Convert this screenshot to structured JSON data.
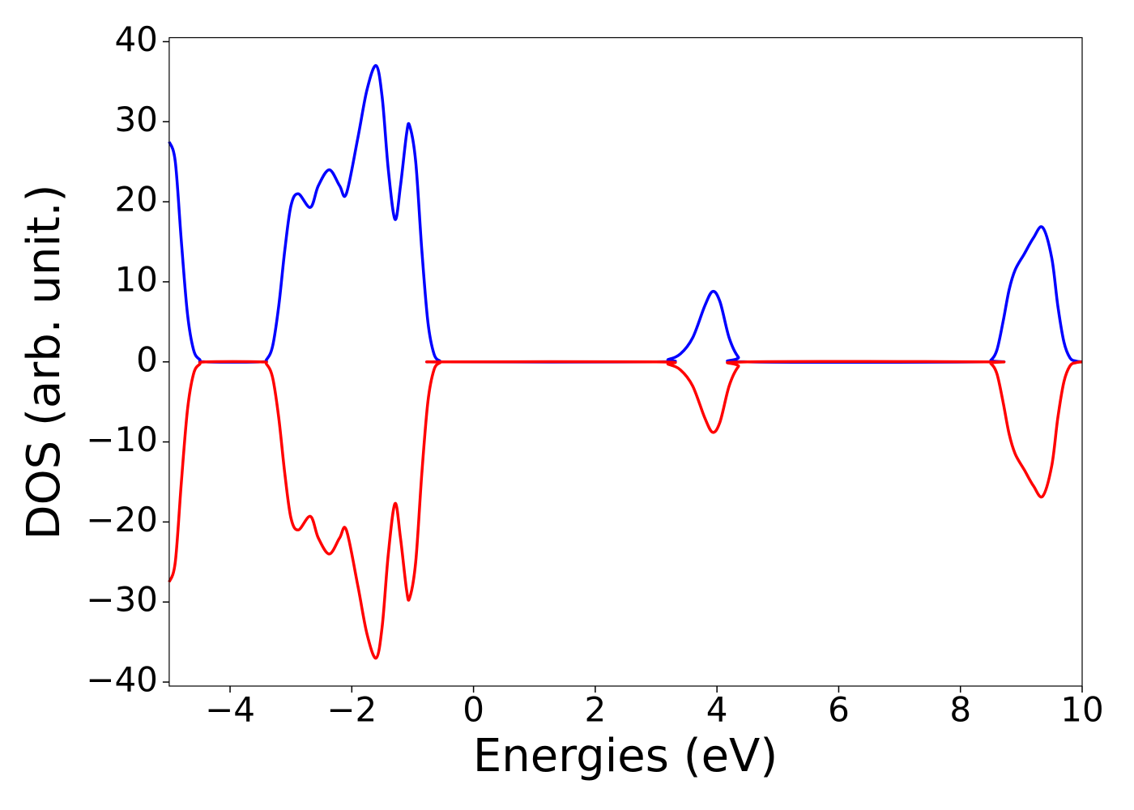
{
  "chart_data": {
    "type": "line",
    "xlabel": "Energies (eV)",
    "ylabel": "DOS (arb. unit.)",
    "x": [
      -5,
      -4.9,
      -4.8,
      -4.7,
      -4.6,
      -4.5,
      -4.4,
      -3.5,
      -3.4,
      -3.3,
      -3.2,
      -3.1,
      -3.0,
      -2.88,
      -2.68,
      -2.55,
      -2.37,
      -2.2,
      -2.09,
      -1.9,
      -1.75,
      -1.6,
      -1.5,
      -1.4,
      -1.29,
      -1.2,
      -1.1,
      -1.05,
      -0.95,
      -0.85,
      -0.75,
      -0.65,
      -0.55,
      -0.5,
      3.0,
      3.2,
      3.4,
      3.6,
      3.8,
      3.93,
      4.05,
      4.2,
      4.35,
      4.5,
      8.4,
      8.5,
      8.6,
      8.7,
      8.8,
      8.9,
      9.05,
      9.2,
      9.35,
      9.5,
      9.6,
      9.7,
      9.8,
      9.9,
      10
    ],
    "series": [
      {
        "color": "#0000ff",
        "values": [
          27.5,
          25,
          15,
          6,
          1.5,
          0.3,
          0,
          0,
          0.3,
          2,
          7,
          14,
          19.5,
          21,
          19.3,
          22,
          24,
          22,
          21,
          28,
          34,
          37,
          33,
          24,
          17.8,
          22,
          28.5,
          29.5,
          25,
          14,
          5,
          1,
          0.1,
          0,
          0,
          0.3,
          1,
          3,
          7,
          8.8,
          7.5,
          3,
          0.6,
          0,
          0,
          0.2,
          1.5,
          5,
          9,
          11.5,
          13.5,
          15.5,
          16.8,
          13,
          7,
          2.5,
          0.5,
          0.1,
          0
        ]
      },
      {
        "color": "#ff0000",
        "values": [
          -27.5,
          -25,
          -15,
          -6,
          -1.5,
          -0.3,
          0,
          0,
          -0.3,
          -2,
          -7,
          -14,
          -19.5,
          -21,
          -19.3,
          -22,
          -24,
          -22,
          -21,
          -28,
          -34,
          -37,
          -33,
          -24,
          -17.7,
          -22,
          -28.5,
          -29.5,
          -25,
          -14,
          -5,
          -1,
          -0.1,
          0,
          0,
          -0.3,
          -1,
          -3,
          -7,
          -8.8,
          -7.5,
          -3,
          -0.6,
          0,
          0,
          -0.2,
          -1.5,
          -5,
          -9,
          -11.5,
          -13.5,
          -15.5,
          -16.8,
          -13,
          -7,
          -2.5,
          -0.5,
          -0.1,
          0
        ]
      }
    ],
    "xlim": [
      -5,
      10
    ],
    "xticks": [
      {
        "value": -4,
        "label": "−4"
      },
      {
        "value": -2,
        "label": "−2"
      },
      0,
      2,
      4,
      6,
      8,
      10
    ],
    "ylim": [
      -40.5,
      40.5
    ],
    "yticks": [
      {
        "value": -40,
        "label": "−40"
      },
      {
        "value": -30,
        "label": "−30"
      },
      {
        "value": -20,
        "label": "−20"
      },
      {
        "value": -10,
        "label": "−10"
      },
      0,
      10,
      20,
      30,
      40
    ],
    "grid": false
  }
}
